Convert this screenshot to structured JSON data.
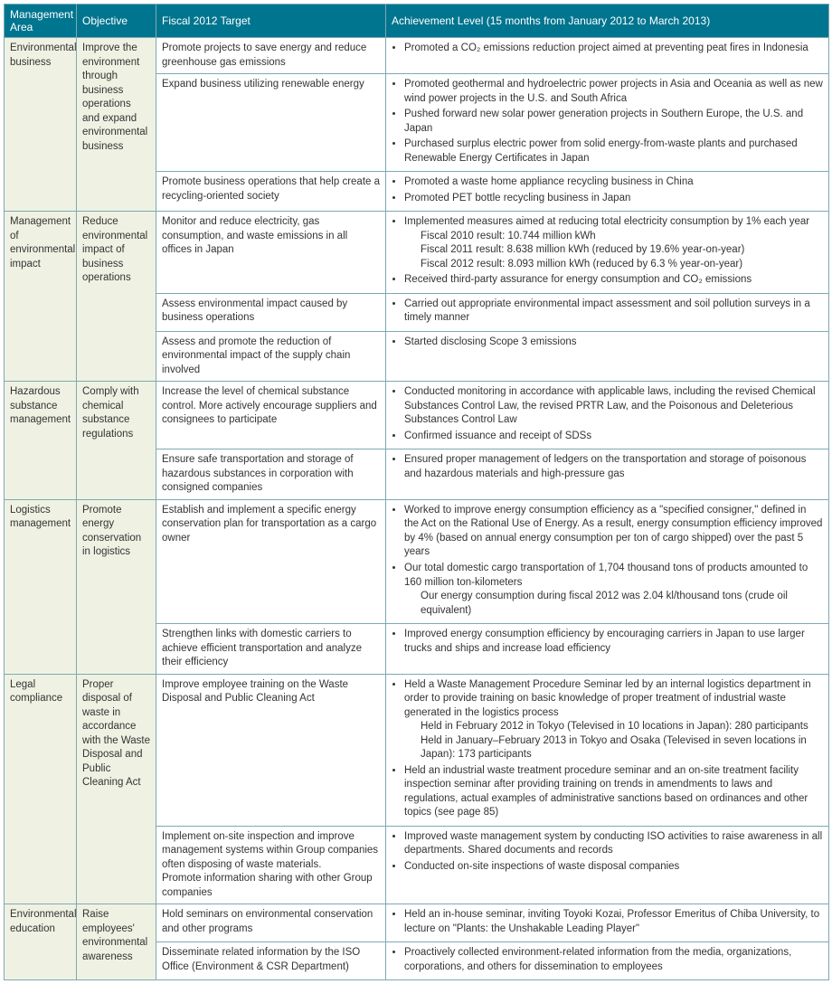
{
  "headers": {
    "c1": "Management Area",
    "c2": "Objective",
    "c3": "Fiscal 2012 Target",
    "c4": "Achievement Level (15 months from January 2012 to March 2013)"
  },
  "colors": {
    "header_bg": "#00758f",
    "header_fg": "#ffffff",
    "area_bg": "#eff2e3",
    "border": "#7fa8b3"
  },
  "areas": [
    {
      "name": "Environmental business",
      "objective": "Improve the environment through business operations and expand environmental business",
      "rows": [
        {
          "target": "Promote projects to save energy and reduce greenhouse gas emissions",
          "ach": [
            "Promoted a CO₂ emissions reduction project aimed at preventing peat fires in Indonesia"
          ]
        },
        {
          "target": "Expand business utilizing renewable energy",
          "ach": [
            "Promoted geothermal and hydroelectric power projects in Asia and Oceania as well as new wind power projects in the U.S. and South Africa",
            "Pushed forward new solar power generation projects in Southern Europe, the U.S. and Japan",
            "Purchased surplus electric power from solid energy-from-waste plants and purchased Renewable Energy Certificates in Japan"
          ]
        },
        {
          "target": "Promote business operations that help create a recycling-oriented society",
          "ach": [
            "Promoted a waste home appliance recycling business in China",
            "Promoted PET bottle recycling business in Japan"
          ]
        }
      ]
    },
    {
      "name": "Management of environmental impact",
      "objective": "Reduce environmental impact of business operations",
      "rows": [
        {
          "target": "Monitor and reduce electricity, gas consumption, and waste emissions in all offices in Japan",
          "ach_html": "<ul><li>Implemented measures aimed at reducing total electricity consumption by 1% each year<span class='indent'>Fiscal 2010 result: 10.744 million kWh</span><span class='indent'>Fiscal 2011 result: 8.638 million kWh (reduced by 19.6% year-on-year)</span><span class='indent'>Fiscal 2012 result: 8.093 million kWh (reduced by 6.3 % year-on-year)</span></li><li>Received third-party assurance for energy consumption and CO₂ emissions</li></ul>"
        },
        {
          "target": "Assess environmental impact caused by business operations",
          "ach": [
            "Carried out appropriate environmental impact assessment and soil pollution surveys in a timely manner"
          ]
        },
        {
          "target": "Assess and promote the reduction of environmental impact of the supply chain involved",
          "ach": [
            "Started disclosing Scope 3 emissions"
          ]
        }
      ]
    },
    {
      "name": "Hazardous substance management",
      "objective": "Comply with chemical substance regulations",
      "rows": [
        {
          "target": "Increase the level of chemical substance control. More actively encourage suppliers and consignees to participate",
          "ach": [
            "Conducted monitoring in accordance with applicable laws, including the revised Chemical Substances Control Law, the revised PRTR Law, and the Poisonous and Deleterious Substances Control Law",
            "Confirmed issuance and receipt of SDSs"
          ]
        },
        {
          "target": "Ensure safe transportation and storage of hazardous substances in corporation with consigned companies",
          "ach": [
            "Ensured proper management of ledgers on the transportation and storage of poisonous and hazardous materials and high-pressure gas"
          ]
        }
      ]
    },
    {
      "name": "Logistics management",
      "objective": "Promote energy conservation in logistics",
      "rows": [
        {
          "target": "Establish and implement a specific energy conservation plan for transportation as a cargo owner",
          "ach_html": "<ul><li>Worked to improve energy consumption efficiency as a \"specified consigner,\" defined in the Act on the Rational Use of Energy. As a result, energy consumption efficiency improved by 4% (based on annual energy consumption per ton of cargo shipped) over the past 5 years</li><li>Our total domestic cargo transportation of 1,704 thousand tons of products amounted to 160 million ton-kilometers<span class='indent'>Our energy consumption during fiscal 2012 was 2.04 kl/thousand tons (crude oil equivalent)</span></li></ul>"
        },
        {
          "target": "Strengthen links with domestic carriers to achieve efficient transportation and analyze their efficiency",
          "ach": [
            "Improved energy consumption efficiency by encouraging carriers in Japan to use larger trucks and ships and increase load efficiency"
          ]
        }
      ]
    },
    {
      "name": "Legal compliance",
      "objective": "Proper disposal of waste in accordance with the Waste Disposal and Public Cleaning Act",
      "rows": [
        {
          "target": "Improve employee training on the Waste Disposal and Public Cleaning Act",
          "ach_html": "<ul><li>Held a Waste Management Procedure Seminar led by an internal logistics department in order to provide training on basic knowledge of proper treatment of industrial waste generated in the logistics process<span class='indent'>Held in February 2012 in Tokyo (Televised in 10 locations in Japan): 280 participants</span><span class='indent'>Held in January–February 2013 in Tokyo and Osaka (Televised in seven locations in Japan): 173 participants</span></li><li>Held an industrial waste treatment procedure seminar and an on-site treatment facility inspection seminar after providing training on trends in amendments to laws and regulations, actual examples of administrative sanctions based on ordinances and other topics (see page 85)</li></ul>"
        },
        {
          "target": "Implement on-site inspection and improve management systems within Group companies often disposing of waste materials.\nPromote information sharing with other Group companies",
          "ach": [
            "Improved waste management system by conducting ISO activities to raise awareness in all departments. Shared documents and records",
            "Conducted on-site inspections of waste disposal companies"
          ]
        }
      ]
    },
    {
      "name": "Environmental education",
      "objective": "Raise employees' environmental awareness",
      "rows": [
        {
          "target": "Hold seminars on environmental conservation and other programs",
          "ach": [
            "Held an in-house seminar, inviting Toyoki Kozai, Professor Emeritus of Chiba University, to lecture on \"Plants: the Unshakable Leading Player\""
          ]
        },
        {
          "target": "Disseminate related information by the ISO Office (Environment & CSR Department)",
          "ach": [
            "Proactively collected environment-related information from the media, organizations, corporations, and others for dissemination to employees"
          ]
        }
      ]
    }
  ]
}
